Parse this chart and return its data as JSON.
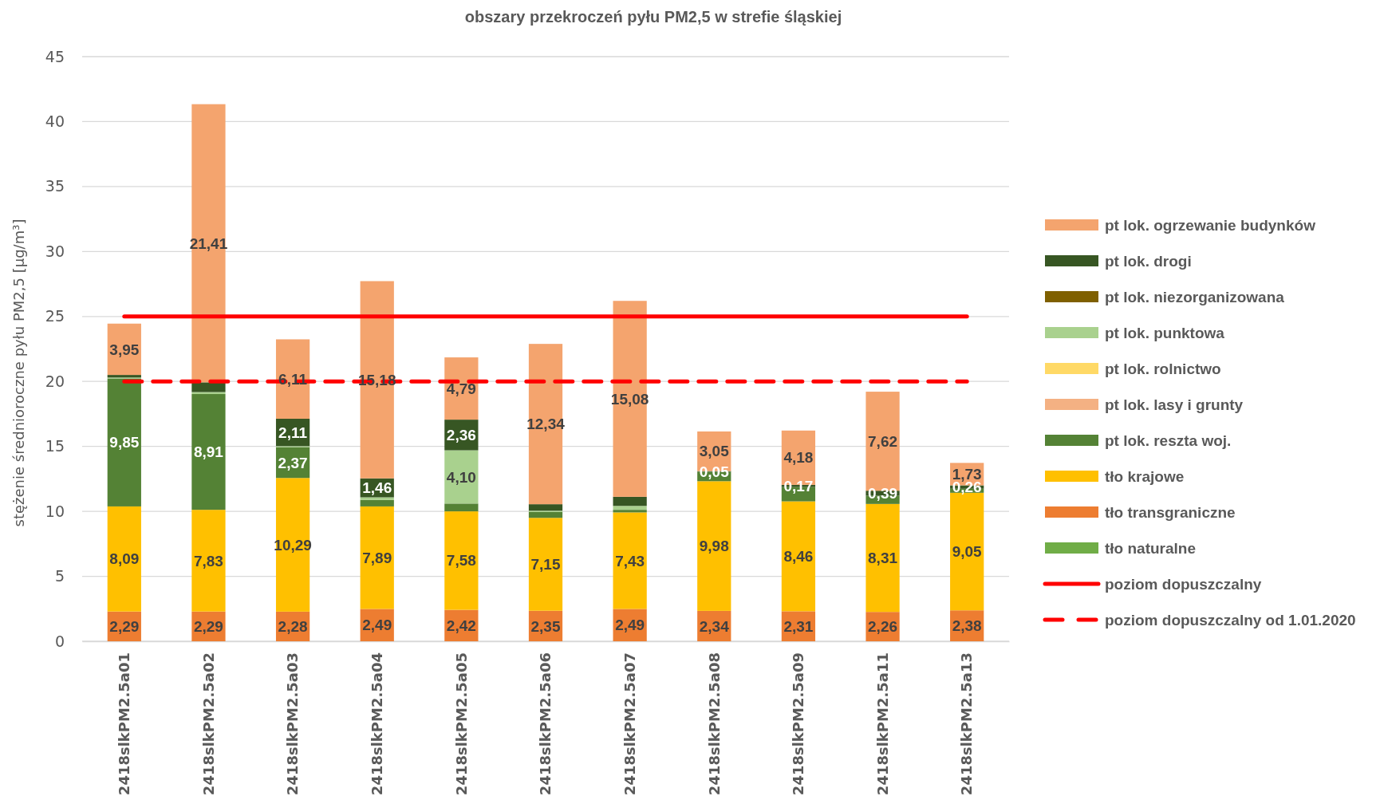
{
  "chart_data": {
    "type": "bar",
    "stacked": true,
    "title": "obszary przekroczeń pyłu PM2,5 w strefie śląskiej",
    "ylabel": "stężenie średnioroczne pyłu PM2,5 [µg/m³]",
    "categories": [
      "2418slkPM2.5a01",
      "2418slkPM2.5a02",
      "2418slkPM2.5a03",
      "2418slkPM2.5a04",
      "2418slkPM2.5a05",
      "2418slkPM2.5a06",
      "2418slkPM2.5a07",
      "2418slkPM2.5a08",
      "2418slkPM2.5a09",
      "2418slkPM2.5a11",
      "2418slkPM2.5a13"
    ],
    "ylim": [
      0,
      45
    ],
    "yticks": [
      0,
      5,
      10,
      15,
      20,
      25,
      30,
      35,
      40,
      45
    ],
    "grid": "y",
    "legend": "right",
    "series": [
      {
        "name": "tło naturalne",
        "color": "#70ad47",
        "values": [
          0,
          0,
          0,
          0,
          0,
          0,
          0,
          0,
          0,
          0,
          0
        ]
      },
      {
        "name": "tło transgraniczne",
        "color": "#ed7d31",
        "values": [
          2.29,
          2.29,
          2.28,
          2.49,
          2.42,
          2.35,
          2.49,
          2.34,
          2.31,
          2.26,
          2.38
        ],
        "value_labels": [
          "2,29",
          "2,29",
          "2,28",
          "2,49",
          "2,42",
          "2,35",
          "2,49",
          "2,34",
          "2,31",
          "2,26",
          "2,38"
        ]
      },
      {
        "name": "tło krajowe",
        "color": "#ffc000",
        "values": [
          8.09,
          7.83,
          10.29,
          7.89,
          7.58,
          7.15,
          7.43,
          9.98,
          8.46,
          8.31,
          9.05
        ],
        "value_labels": [
          "8,09",
          "7,83",
          "10,29",
          "7,89",
          "7,58",
          "7,15",
          "7,43",
          "9,98",
          "8,46",
          "8,31",
          "9,05"
        ]
      },
      {
        "name": "pt lok. reszta woj.",
        "color": "#548235",
        "values": [
          9.85,
          8.91,
          2.37,
          0.5,
          0.6,
          0.45,
          0.2,
          0.73,
          1.1,
          0.63,
          0.31
        ],
        "value_labels": [
          "9,85",
          "8,91",
          "2,37",
          null,
          null,
          null,
          null,
          null,
          null,
          null,
          null
        ]
      },
      {
        "name": "pt lok. lasy i grunty",
        "color": "#f4b183",
        "values": [
          0,
          0,
          0,
          0,
          0,
          0,
          0,
          0,
          0,
          0,
          0
        ]
      },
      {
        "name": "pt lok. rolnictwo",
        "color": "#ffd966",
        "values": [
          0,
          0,
          0,
          0,
          0,
          0,
          0,
          0,
          0,
          0,
          0
        ]
      },
      {
        "name": "pt lok. punktowa",
        "color": "#a9d18e",
        "values": [
          0.07,
          0.15,
          0.08,
          0.2,
          4.1,
          0.1,
          0.3,
          0,
          0,
          0,
          0
        ],
        "value_labels": [
          null,
          null,
          null,
          null,
          "4,10",
          null,
          null,
          null,
          null,
          null,
          null
        ]
      },
      {
        "name": "pt lok. niezorganizowana",
        "color": "#7f6000",
        "values": [
          0,
          0,
          0,
          0,
          0,
          0,
          0,
          0,
          0,
          0,
          0
        ]
      },
      {
        "name": "pt lok. drogi",
        "color": "#375623",
        "values": [
          0.2,
          0.75,
          2.11,
          1.46,
          2.36,
          0.5,
          0.7,
          0.05,
          0.17,
          0.39,
          0.26
        ],
        "value_labels": [
          null,
          null,
          "2,11",
          "1,46",
          "2,36",
          null,
          null,
          "0,05",
          "0,17",
          "0,39",
          "0,26"
        ]
      },
      {
        "name": "pt lok. ogrzewanie budynków",
        "color": "#f4a46e",
        "values": [
          3.95,
          21.41,
          6.11,
          15.18,
          4.79,
          12.34,
          15.08,
          3.05,
          4.18,
          7.62,
          1.73
        ],
        "value_labels": [
          "3,95",
          "21,41",
          "6,11",
          "15,18",
          "4,79",
          "12,34",
          "15,08",
          "3,05",
          "4,18",
          "7,62",
          "1,73"
        ]
      }
    ],
    "ref_lines": [
      {
        "axis": "y",
        "value": 25,
        "label": "poziom dopuszczalny",
        "color": "#ff0000",
        "line_style": "solid"
      },
      {
        "axis": "y",
        "value": 20,
        "label": "poziom dopuszczalny od 1.01.2020",
        "color": "#ff0000",
        "line_style": "dashed"
      }
    ]
  }
}
